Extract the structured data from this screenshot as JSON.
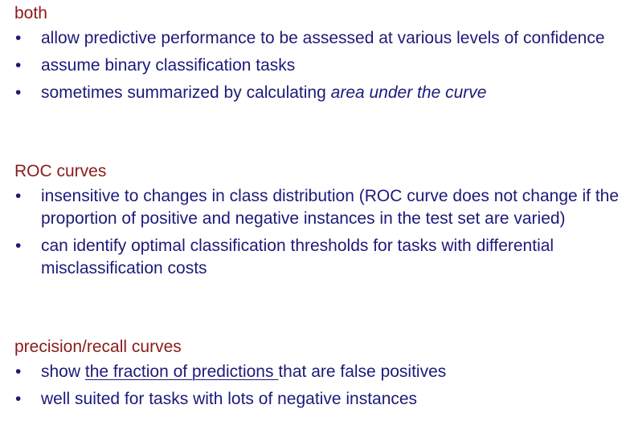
{
  "sections": [
    {
      "heading": "both",
      "items": [
        {
          "text": "allow predictive performance to be assessed at various levels of confidence"
        },
        {
          "text": "assume binary classification tasks"
        },
        {
          "text_before": "sometimes summarized by calculating ",
          "text_italic": "area under the curve"
        }
      ]
    },
    {
      "heading": "ROC curves",
      "items": [
        {
          "text": "insensitive to changes in class distribution (ROC curve does not change if the proportion of positive and negative instances in the test set are varied)"
        },
        {
          "text": "can identify optimal classification thresholds for tasks with differential misclassification costs"
        }
      ]
    },
    {
      "heading": "precision/recall curves",
      "items": [
        {
          "text_before": "show ",
          "text_underlined": "the fraction of predictions ",
          "text_after": "that are false positives"
        },
        {
          "text": "well suited for tasks with lots of negative instances"
        }
      ]
    }
  ],
  "bullet_glyph": "•",
  "colors": {
    "heading": "#8b1a1a",
    "body_text": "#1c1a7a",
    "background": "#ffffff"
  }
}
